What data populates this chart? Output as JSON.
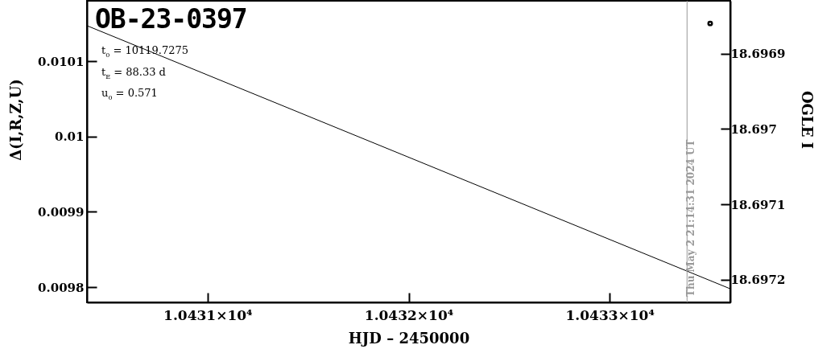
{
  "chart_data": {
    "type": "line",
    "title": "OB-23-0397",
    "xlabel": "HJD – 2450000",
    "ylabel": "Δ(I,R,Z,U)",
    "y2label": "OGLE I",
    "annotations": [
      "t$_{0}$ = 10119.7275",
      "t$_{E}$ = 88.33 d",
      "u$_{0}$ = 0.571",
      {
        "text": "Thu May  2 21:14:31 2024 UT",
        "x": 10433.385
      }
    ],
    "xlim": [
      10430.4,
      10433.6
    ],
    "xticks": [
      {
        "value": 10431,
        "label": "1.0431×10⁴"
      },
      {
        "value": 10432,
        "label": "1.0432×10⁴"
      },
      {
        "value": 10433,
        "label": "1.0433×10⁴"
      }
    ],
    "ylim": [
      0.00978,
      0.01018
    ],
    "yticks": [
      0.0098,
      0.0099,
      0.01,
      0.0101
    ],
    "y2lim": [
      18.69723,
      18.69683
    ],
    "y2ticks": [
      18.6969,
      18.697,
      18.6971,
      18.6972
    ],
    "series": [
      {
        "color": "#000000",
        "x": [
          10430.4,
          10433.6
        ],
        "values": [
          0.010147,
          0.009798
        ]
      },
      {
        "type": "scatter",
        "axis": "y2",
        "color": "#000000",
        "marker": "circle",
        "x": [
          10433.5
        ],
        "values": [
          18.69686
        ]
      }
    ],
    "ref_lines": [
      {
        "axis": "x",
        "value": 10433.385,
        "color": "#999999"
      }
    ],
    "grid": false
  }
}
